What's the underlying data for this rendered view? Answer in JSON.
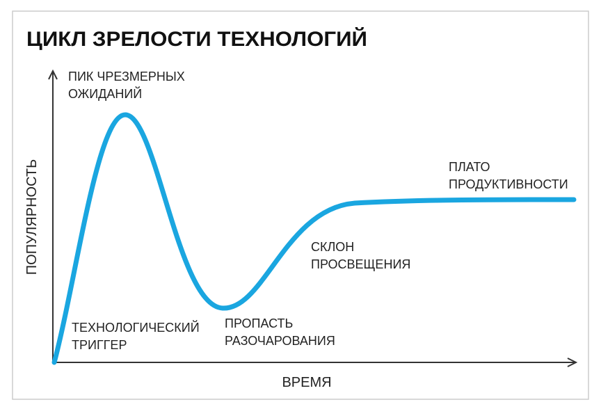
{
  "title": "ЦИКЛ ЗРЕЛОСТИ ТЕХНОЛОГИЙ",
  "y_axis_label": "ПОПУЛЯРНОСТЬ",
  "x_axis_label": "ВРЕМЯ",
  "phases": [
    {
      "lines": [
        "ПИК ЧРЕЗМЕРНЫХ",
        "ОЖИДАНИЙ"
      ]
    },
    {
      "lines": [
        "ПЛАТО",
        "ПРОДУКТИВНОСТИ"
      ]
    },
    {
      "lines": [
        "СКЛОН",
        "ПРОСВЕЩЕНИЯ"
      ]
    },
    {
      "lines": [
        "ТЕХНОЛОГИЧЕСКИЙ",
        "ТРИГГЕР"
      ]
    },
    {
      "lines": [
        "ПРОПАСТЬ",
        "РАЗОЧАРОВАНИЯ"
      ]
    }
  ]
}
